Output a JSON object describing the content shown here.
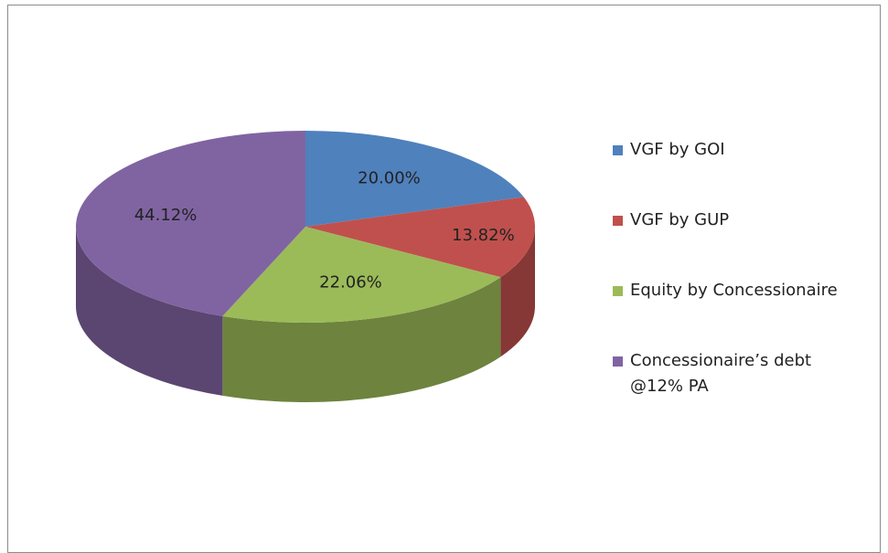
{
  "chart_data": {
    "type": "pie",
    "categories": [
      "VGF by GOI",
      "VGF by GUP",
      "Equity by Concessionaire",
      "Concessionaire’s debt @12% PA"
    ],
    "values": [
      20.0,
      13.82,
      22.06,
      44.12
    ],
    "value_labels": [
      "20.00%",
      "13.82%",
      "22.06%",
      "44.12%"
    ],
    "colors": [
      "#4f81bd",
      "#c0504d",
      "#9bbb59",
      "#8064a2"
    ],
    "legend": "right"
  }
}
